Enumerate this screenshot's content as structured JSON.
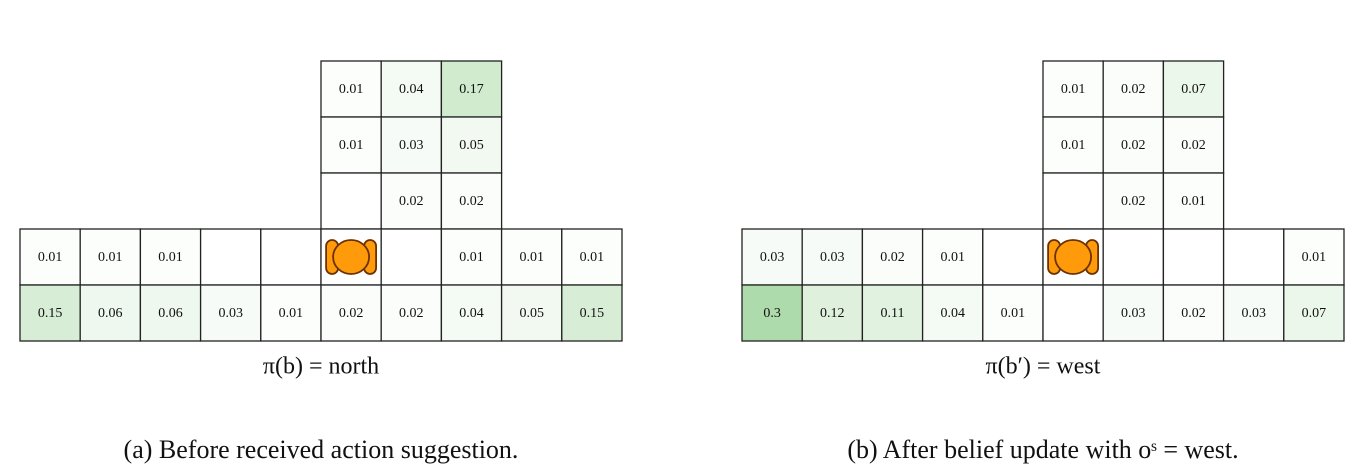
{
  "panels": [
    {
      "top_rows": [
        [
          0.01,
          0.04,
          0.17
        ],
        [
          0.01,
          0.03,
          0.05
        ],
        [
          null,
          0.02,
          0.02
        ]
      ],
      "bottom_rows": [
        [
          0.01,
          0.01,
          0.01,
          null,
          null,
          null,
          null,
          0.01,
          0.01,
          0.01
        ],
        [
          0.15,
          0.06,
          0.06,
          0.03,
          0.01,
          0.02,
          0.02,
          0.04,
          0.05,
          0.15
        ]
      ],
      "policy": "π(b) = north",
      "caption": "(a) Before received action suggestion."
    },
    {
      "top_rows": [
        [
          0.01,
          0.02,
          0.07
        ],
        [
          0.01,
          0.02,
          0.02
        ],
        [
          null,
          0.02,
          0.01
        ]
      ],
      "bottom_rows": [
        [
          0.03,
          0.03,
          0.02,
          0.01,
          null,
          null,
          null,
          null,
          null,
          0.01
        ],
        [
          0.3,
          0.12,
          0.11,
          0.04,
          0.01,
          null,
          0.03,
          0.02,
          0.03,
          0.07
        ]
      ],
      "policy": "π(b′) = west",
      "caption": "(b) After belief update with oˢ = west."
    }
  ]
}
